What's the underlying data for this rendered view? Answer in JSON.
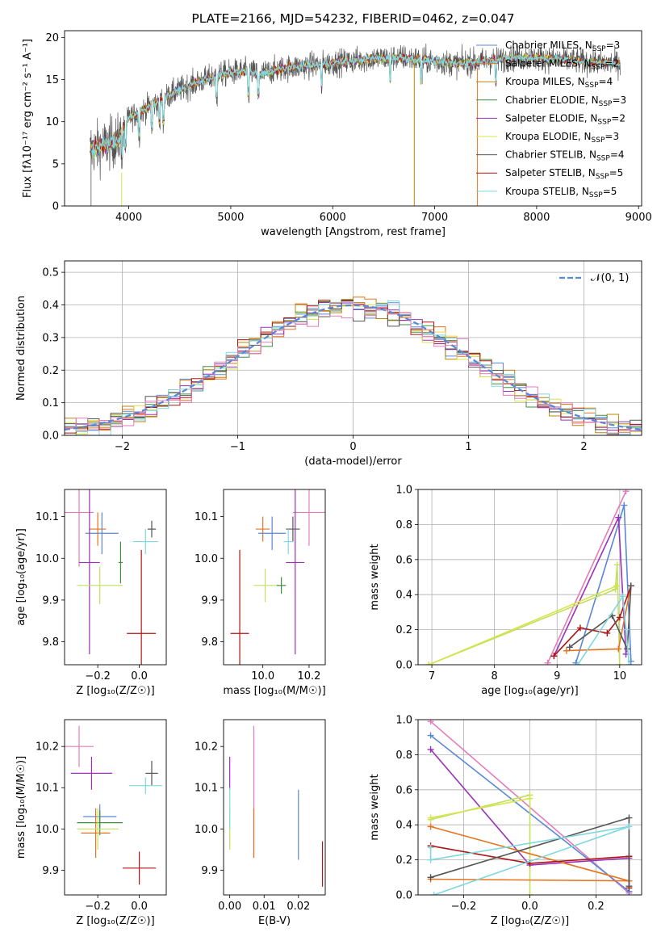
{
  "colors": {
    "chabrier_miles": "#5b87d8",
    "salpeter_miles": "#e8731f",
    "kroupa_miles": "#b8860b",
    "chabrier_elodie": "#3f8f3f",
    "salpeter_elodie": "#9b30b8",
    "kroupa_elodie": "#d7e44a",
    "chabrier_stelib": "#555555",
    "salpeter_stelib": "#b01515",
    "kroupa_stelib": "#7fd8e0",
    "pink": "#e57bb8",
    "lime": "#c2e060",
    "normal_curve": "#5b87d8",
    "grid": "#b0b0b0"
  },
  "chart_data": [
    {
      "id": "spectrum",
      "type": "line",
      "title": "PLATE=2166, MJD=54232, FIBERID=0462, z=0.047",
      "xlabel": "wavelength [Angstrom, rest frame]",
      "ylabel": "Flux [fλ10⁻¹⁷ erg cm⁻² s⁻¹ A⁻¹]",
      "xlim": [
        3370,
        9030
      ],
      "ylim": [
        0,
        20.8
      ],
      "xticks": [
        4000,
        5000,
        6000,
        7000,
        8000,
        9000
      ],
      "yticks": [
        0,
        5,
        10,
        15,
        20
      ],
      "grid": false,
      "legend_position": "top-right",
      "continuum": [
        [
          3620,
          6.5
        ],
        [
          3700,
          7.0
        ],
        [
          3800,
          7.4
        ],
        [
          3900,
          7.8
        ],
        [
          4000,
          10.5
        ],
        [
          4100,
          11.0
        ],
        [
          4200,
          11.8
        ],
        [
          4300,
          12.5
        ],
        [
          4500,
          13.8
        ],
        [
          4700,
          14.8
        ],
        [
          4900,
          15.6
        ],
        [
          5100,
          16.0
        ],
        [
          5300,
          15.7
        ],
        [
          5500,
          16.3
        ],
        [
          5800,
          16.7
        ],
        [
          6100,
          17.1
        ],
        [
          6400,
          17.5
        ],
        [
          6700,
          17.6
        ],
        [
          6900,
          17.3
        ],
        [
          7200,
          16.9
        ],
        [
          7500,
          17.2
        ],
        [
          7800,
          17.6
        ],
        [
          8100,
          17.5
        ],
        [
          8400,
          17.2
        ],
        [
          8600,
          17.0
        ],
        [
          8820,
          16.9
        ]
      ],
      "series": [
        {
          "name": "Chabrier MILES, N",
          "sub": "SSP",
          "suffix": "=3",
          "color_key": "chabrier_miles"
        },
        {
          "name": "Salpeter MILES, N",
          "sub": "SSP",
          "suffix": "=2",
          "color_key": "salpeter_miles"
        },
        {
          "name": "Kroupa MILES, N",
          "sub": "SSP",
          "suffix": "=4",
          "color_key": "kroupa_miles"
        },
        {
          "name": "Chabrier ELODIE, N",
          "sub": "SSP",
          "suffix": "=3",
          "color_key": "chabrier_elodie"
        },
        {
          "name": "Salpeter ELODIE, N",
          "sub": "SSP",
          "suffix": "=2",
          "color_key": "salpeter_elodie"
        },
        {
          "name": "Kroupa ELODIE, N",
          "sub": "SSP",
          "suffix": "=3",
          "color_key": "kroupa_elodie"
        },
        {
          "name": "Chabrier STELIB, N",
          "sub": "SSP",
          "suffix": "=4",
          "color_key": "chabrier_stelib"
        },
        {
          "name": "Salpeter STELIB, N",
          "sub": "SSP",
          "suffix": "=5",
          "color_key": "salpeter_stelib"
        },
        {
          "name": "Kroupa STELIB, N",
          "sub": "SSP",
          "suffix": "=5",
          "color_key": "kroupa_stelib"
        }
      ]
    },
    {
      "id": "residuals",
      "type": "bar",
      "xlabel": "(data-model)/error",
      "ylabel": "Normed distribution",
      "xlim": [
        -2.5,
        2.5
      ],
      "ylim": [
        0,
        0.535
      ],
      "xticks": [
        -2,
        -1,
        0,
        1,
        2
      ],
      "yticks": [
        0.0,
        0.1,
        0.2,
        0.3,
        0.4,
        0.5
      ],
      "grid": true,
      "legend_position": "top-right",
      "normal_label": "𝒩(0, 1)",
      "bin_width": 0.1,
      "bin_start": -2.5,
      "hist_colors": [
        "chabrier_miles",
        "salpeter_miles",
        "kroupa_miles",
        "chabrier_elodie",
        "salpeter_elodie",
        "kroupa_elodie",
        "chabrier_stelib",
        "salpeter_stelib",
        "kroupa_stelib",
        "pink"
      ]
    },
    {
      "id": "age_vs_Z",
      "type": "scatter",
      "xlabel": "Z [log₁₀(Z/Z☉)]",
      "ylabel": "age  [log₁₀(age/yr)]",
      "xlim": [
        -0.36,
        0.13
      ],
      "ylim": [
        9.745,
        10.165
      ],
      "xticks": [
        -0.2,
        0.0
      ],
      "yticks": [
        9.8,
        9.9,
        10.0,
        10.1
      ],
      "grid": false,
      "points": [
        {
          "x": -0.29,
          "y": 10.11,
          "xerr": 0.07,
          "yerr": 0.13,
          "color_key": "pink"
        },
        {
          "x": -0.2,
          "y": 10.07,
          "xerr": 0.04,
          "yerr": 0.04,
          "color_key": "salpeter_miles"
        },
        {
          "x": -0.18,
          "y": 10.06,
          "xerr": 0.08,
          "yerr": 0.05,
          "color_key": "chabrier_miles"
        },
        {
          "x": -0.24,
          "y": 9.99,
          "xerr": 0.05,
          "yerr": 0.22,
          "color_key": "salpeter_elodie"
        },
        {
          "x": -0.19,
          "y": 9.935,
          "xerr": 0.11,
          "yerr": 0.045,
          "color_key": "lime"
        },
        {
          "x": -0.09,
          "y": 9.99,
          "xerr": 0.01,
          "yerr": 0.05,
          "color_key": "chabrier_elodie"
        },
        {
          "x": 0.06,
          "y": 10.07,
          "xerr": 0.02,
          "yerr": 0.02,
          "color_key": "chabrier_stelib"
        },
        {
          "x": 0.03,
          "y": 10.04,
          "xerr": 0.06,
          "yerr": 0.03,
          "color_key": "kroupa_stelib"
        },
        {
          "x": 0.01,
          "y": 9.82,
          "xerr": 0.07,
          "yerr": 0.2,
          "color_key": "salpeter_stelib"
        }
      ]
    },
    {
      "id": "age_vs_mass",
      "type": "scatter",
      "xlabel": "mass [log₁₀(M/M☉)]",
      "ylabel": "",
      "xlim": [
        9.83,
        10.27
      ],
      "ylim": [
        9.745,
        10.165
      ],
      "xticks": [
        10.0,
        10.2
      ],
      "yticks": [
        9.8,
        9.9,
        10.0,
        10.1
      ],
      "grid": false,
      "points": [
        {
          "x": 10.2,
          "y": 10.11,
          "xerr": 0.07,
          "yerr": 0.08,
          "color_key": "pink"
        },
        {
          "x": 10.0,
          "y": 10.07,
          "xerr": 0.03,
          "yerr": 0.03,
          "color_key": "salpeter_miles"
        },
        {
          "x": 10.04,
          "y": 10.06,
          "xerr": 0.06,
          "yerr": 0.04,
          "color_key": "chabrier_miles"
        },
        {
          "x": 10.14,
          "y": 9.99,
          "xerr": 0.04,
          "yerr": 0.22,
          "color_key": "salpeter_elodie"
        },
        {
          "x": 10.01,
          "y": 9.935,
          "xerr": 0.05,
          "yerr": 0.04,
          "color_key": "lime"
        },
        {
          "x": 10.08,
          "y": 9.935,
          "xerr": 0.02,
          "yerr": 0.02,
          "color_key": "chabrier_elodie"
        },
        {
          "x": 10.13,
          "y": 10.07,
          "xerr": 0.03,
          "yerr": 0.03,
          "color_key": "chabrier_stelib"
        },
        {
          "x": 10.11,
          "y": 10.04,
          "xerr": 0.02,
          "yerr": 0.03,
          "color_key": "kroupa_stelib"
        },
        {
          "x": 9.9,
          "y": 9.82,
          "xerr": 0.04,
          "yerr": 0.2,
          "color_key": "salpeter_stelib"
        }
      ]
    },
    {
      "id": "massweight_vs_age",
      "type": "line",
      "xlabel": "age  [log₁₀(age/yr)]",
      "ylabel": "mass weight",
      "xlim": [
        6.78,
        10.35
      ],
      "ylim": [
        0,
        1.0
      ],
      "xticks": [
        7,
        8,
        9,
        10
      ],
      "yticks": [
        0.0,
        0.2,
        0.4,
        0.6,
        0.8,
        1.0
      ],
      "grid": true,
      "series": [
        {
          "color_key": "pink",
          "points": [
            [
              8.85,
              0.01
            ],
            [
              10.1,
              0.99
            ]
          ]
        },
        {
          "color_key": "chabrier_miles",
          "points": [
            [
              9.3,
              0.01
            ],
            [
              10.07,
              0.91
            ],
            [
              10.18,
              0.02
            ]
          ]
        },
        {
          "color_key": "salpeter_elodie",
          "points": [
            [
              8.95,
              0.05
            ],
            [
              9.98,
              0.84
            ],
            [
              10.1,
              0.06
            ]
          ]
        },
        {
          "color_key": "lime",
          "points": [
            [
              6.95,
              0.0
            ],
            [
              9.93,
              0.43
            ],
            [
              9.96,
              0.57
            ],
            [
              10.0,
              0.0
            ]
          ]
        },
        {
          "color_key": "kroupa_elodie",
          "points": [
            [
              6.95,
              0.0
            ],
            [
              9.95,
              0.45
            ]
          ]
        },
        {
          "color_key": "salpeter_miles",
          "points": [
            [
              9.15,
              0.08
            ],
            [
              9.98,
              0.09
            ],
            [
              10.18,
              0.45
            ]
          ]
        },
        {
          "color_key": "salpeter_stelib",
          "points": [
            [
              8.95,
              0.05
            ],
            [
              9.37,
              0.21
            ],
            [
              9.8,
              0.18
            ],
            [
              10.0,
              0.27
            ],
            [
              10.18,
              0.45
            ]
          ]
        },
        {
          "color_key": "chabrier_stelib",
          "points": [
            [
              9.2,
              0.1
            ],
            [
              9.88,
              0.28
            ],
            [
              10.12,
              0.09
            ],
            [
              10.18,
              0.45
            ]
          ]
        },
        {
          "color_key": "kroupa_stelib",
          "points": [
            [
              9.33,
              0.0
            ],
            [
              10.05,
              0.39
            ],
            [
              10.1,
              0.2
            ],
            [
              10.15,
              0.0
            ]
          ]
        }
      ]
    },
    {
      "id": "mass_vs_Z",
      "type": "scatter",
      "xlabel": "Z [log₁₀(Z/Z☉)]",
      "ylabel": "mass [log₁₀(M/M☉)]",
      "xlim": [
        -0.36,
        0.13
      ],
      "ylim": [
        9.84,
        10.265
      ],
      "xticks": [
        -0.2,
        0.0
      ],
      "yticks": [
        9.9,
        10.0,
        10.1,
        10.2
      ],
      "grid": false,
      "points": [
        {
          "x": -0.29,
          "y": 10.2,
          "xerr": 0.07,
          "yerr": 0.05,
          "color_key": "pink"
        },
        {
          "x": -0.23,
          "y": 10.135,
          "xerr": 0.1,
          "yerr": 0.04,
          "color_key": "salpeter_elodie"
        },
        {
          "x": -0.19,
          "y": 10.03,
          "xerr": 0.08,
          "yerr": 0.03,
          "color_key": "chabrier_miles"
        },
        {
          "x": -0.19,
          "y": 10.015,
          "xerr": 0.11,
          "yerr": 0.03,
          "color_key": "chabrier_elodie"
        },
        {
          "x": -0.21,
          "y": 9.99,
          "xerr": 0.07,
          "yerr": 0.06,
          "color_key": "salpeter_miles"
        },
        {
          "x": -0.2,
          "y": 10.0,
          "xerr": 0.1,
          "yerr": 0.05,
          "color_key": "lime"
        },
        {
          "x": 0.06,
          "y": 10.135,
          "xerr": 0.03,
          "yerr": 0.03,
          "color_key": "chabrier_stelib"
        },
        {
          "x": 0.03,
          "y": 10.105,
          "xerr": 0.08,
          "yerr": 0.02,
          "color_key": "kroupa_stelib"
        },
        {
          "x": 0.0,
          "y": 9.905,
          "xerr": 0.08,
          "yerr": 0.04,
          "color_key": "salpeter_stelib"
        }
      ]
    },
    {
      "id": "mass_vs_ebv",
      "type": "scatter",
      "xlabel": "E(B-V)",
      "ylabel": "",
      "xlim": [
        -0.0018,
        0.0278
      ],
      "ylim": [
        9.84,
        10.265
      ],
      "xticks": [
        0.0,
        0.01,
        0.02
      ],
      "yticks": [
        9.9,
        10.0,
        10.1,
        10.2
      ],
      "grid": false,
      "points": [
        {
          "x": 0.007,
          "y": 10.09,
          "xerr": 0.0,
          "yerr": 0.16,
          "color_key": "pink"
        },
        {
          "x": 0.007,
          "y": 9.99,
          "xerr": 0.0,
          "yerr": 0.06,
          "color_key": "salpeter_miles"
        },
        {
          "x": 0.02,
          "y": 10.01,
          "xerr": 0.0,
          "yerr": 0.085,
          "color_key": "chabrier_miles"
        },
        {
          "x": 0.0,
          "y": 10.135,
          "xerr": 0.0,
          "yerr": 0.04,
          "color_key": "salpeter_elodie"
        },
        {
          "x": 0.0,
          "y": 10.0,
          "xerr": 0.0,
          "yerr": 0.05,
          "color_key": "lime"
        },
        {
          "x": 0.0,
          "y": 10.05,
          "xerr": 0.0,
          "yerr": 0.05,
          "color_key": "kroupa_stelib"
        },
        {
          "x": 0.027,
          "y": 9.915,
          "xerr": 0.0,
          "yerr": 0.055,
          "color_key": "salpeter_stelib"
        }
      ]
    },
    {
      "id": "massweight_vs_Z",
      "type": "line",
      "xlabel": "Z [log₁₀(Z/Z☉)]",
      "ylabel": "mass weight",
      "xlim": [
        -0.338,
        0.338
      ],
      "ylim": [
        0,
        1.0
      ],
      "xticks": [
        -0.2,
        0.0,
        0.2
      ],
      "yticks": [
        0.0,
        0.2,
        0.4,
        0.6,
        0.8,
        1.0
      ],
      "grid": true,
      "series": [
        {
          "color_key": "pink",
          "points": [
            [
              -0.3,
              0.99
            ],
            [
              0.3,
              0.01
            ]
          ]
        },
        {
          "color_key": "chabrier_miles",
          "points": [
            [
              -0.3,
              0.91
            ],
            [
              0.3,
              0.02
            ]
          ]
        },
        {
          "color_key": "salpeter_elodie",
          "points": [
            [
              -0.3,
              0.83
            ],
            [
              0.0,
              0.17
            ],
            [
              0.3,
              0.21
            ]
          ]
        },
        {
          "color_key": "lime",
          "points": [
            [
              -0.3,
              0.43
            ],
            [
              0.0,
              0.57
            ],
            [
              0.0,
              0.0
            ]
          ]
        },
        {
          "color_key": "kroupa_elodie",
          "points": [
            [
              -0.3,
              0.44
            ],
            [
              0.0,
              0.55
            ]
          ]
        },
        {
          "color_key": "salpeter_miles",
          "points": [
            [
              -0.3,
              0.09
            ],
            [
              0.3,
              0.08
            ],
            [
              -0.3,
              0.39
            ]
          ]
        },
        {
          "color_key": "salpeter_stelib",
          "points": [
            [
              -0.3,
              0.28
            ],
            [
              0.0,
              0.18
            ],
            [
              0.3,
              0.22
            ],
            [
              0.3,
              0.04
            ]
          ]
        },
        {
          "color_key": "chabrier_stelib",
          "points": [
            [
              -0.3,
              0.1
            ],
            [
              0.3,
              0.44
            ],
            [
              0.3,
              0.05
            ]
          ]
        },
        {
          "color_key": "kroupa_stelib",
          "points": [
            [
              -0.29,
              0.0
            ],
            [
              0.3,
              0.39
            ],
            [
              -0.3,
              0.2
            ],
            [
              -0.3,
              0.27
            ]
          ]
        }
      ]
    }
  ]
}
